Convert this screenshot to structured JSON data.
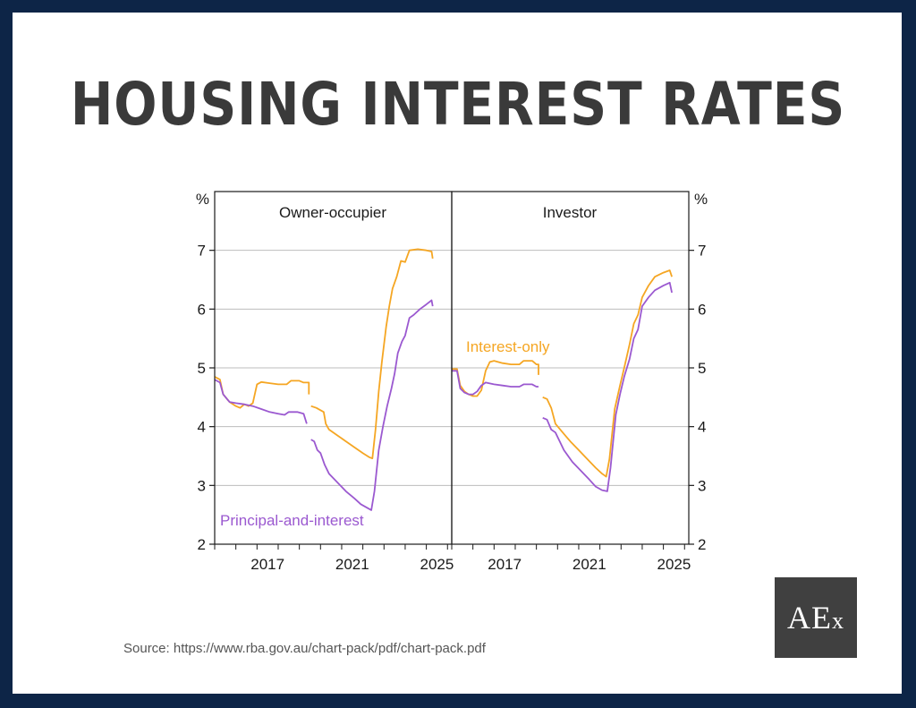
{
  "title": "HOUSING INTEREST RATES",
  "source": "Source: https://www.rba.gov.au/chart-pack/pdf/chart-pack.pdf",
  "logo": {
    "main": "AE",
    "sub": "x"
  },
  "colors": {
    "interest_only": "#f5a623",
    "principal_and_interest": "#9b59d0",
    "frame": "#1a1a1a",
    "gridline": "#bdbdbd"
  },
  "chart_data": {
    "type": "line",
    "y_unit_left": "%",
    "y_unit_right": "%",
    "ylim": [
      2,
      8
    ],
    "yticks": [
      2,
      3,
      4,
      5,
      6,
      7
    ],
    "xlim": [
      2015.0,
      2026.2
    ],
    "xticks": [
      2017,
      2021,
      2025
    ],
    "grid": true,
    "panels": [
      {
        "title": "Owner-occupier",
        "annotations": [
          {
            "text": "Principal-and-interest",
            "series": "Principal-and-interest",
            "placement": "bottom-left"
          }
        ],
        "series": [
          {
            "name": "Interest-only",
            "segments": [
              [
                [
                  2015.0,
                  4.85
                ],
                [
                  2015.25,
                  4.8
                ],
                [
                  2015.4,
                  4.55
                ],
                [
                  2015.7,
                  4.42
                ],
                [
                  2016.0,
                  4.35
                ],
                [
                  2016.2,
                  4.32
                ],
                [
                  2016.4,
                  4.38
                ],
                [
                  2016.6,
                  4.35
                ],
                [
                  2016.8,
                  4.4
                ],
                [
                  2017.0,
                  4.72
                ],
                [
                  2017.2,
                  4.76
                ],
                [
                  2017.6,
                  4.74
                ],
                [
                  2018.0,
                  4.72
                ],
                [
                  2018.4,
                  4.72
                ],
                [
                  2018.6,
                  4.78
                ],
                [
                  2019.0,
                  4.78
                ],
                [
                  2019.2,
                  4.75
                ],
                [
                  2019.45,
                  4.75
                ],
                [
                  2019.45,
                  4.55
                ]
              ],
              [
                [
                  2019.55,
                  4.35
                ],
                [
                  2019.8,
                  4.32
                ],
                [
                  2020.0,
                  4.28
                ],
                [
                  2020.15,
                  4.25
                ],
                [
                  2020.25,
                  4.05
                ],
                [
                  2020.4,
                  3.95
                ],
                [
                  2020.8,
                  3.85
                ],
                [
                  2021.2,
                  3.75
                ],
                [
                  2021.6,
                  3.65
                ],
                [
                  2022.0,
                  3.55
                ],
                [
                  2022.3,
                  3.48
                ],
                [
                  2022.45,
                  3.46
                ],
                [
                  2022.6,
                  3.95
                ],
                [
                  2022.75,
                  4.6
                ],
                [
                  2022.9,
                  5.1
                ],
                [
                  2023.1,
                  5.7
                ],
                [
                  2023.25,
                  6.05
                ],
                [
                  2023.4,
                  6.35
                ],
                [
                  2023.6,
                  6.55
                ],
                [
                  2023.8,
                  6.82
                ],
                [
                  2024.0,
                  6.8
                ],
                [
                  2024.2,
                  7.0
                ],
                [
                  2024.6,
                  7.02
                ],
                [
                  2025.0,
                  7.0
                ],
                [
                  2025.25,
                  6.98
                ],
                [
                  2025.3,
                  6.86
                ]
              ]
            ]
          },
          {
            "name": "Principal-and-interest",
            "segments": [
              [
                [
                  2015.0,
                  4.8
                ],
                [
                  2015.25,
                  4.75
                ],
                [
                  2015.4,
                  4.55
                ],
                [
                  2015.7,
                  4.42
                ],
                [
                  2016.0,
                  4.4
                ],
                [
                  2016.4,
                  4.38
                ],
                [
                  2016.8,
                  4.35
                ],
                [
                  2017.2,
                  4.3
                ],
                [
                  2017.6,
                  4.25
                ],
                [
                  2018.0,
                  4.22
                ],
                [
                  2018.3,
                  4.2
                ],
                [
                  2018.5,
                  4.25
                ],
                [
                  2018.9,
                  4.25
                ],
                [
                  2019.2,
                  4.22
                ],
                [
                  2019.35,
                  4.05
                ]
              ],
              [
                [
                  2019.55,
                  3.78
                ],
                [
                  2019.7,
                  3.75
                ],
                [
                  2019.85,
                  3.6
                ],
                [
                  2020.0,
                  3.55
                ],
                [
                  2020.2,
                  3.35
                ],
                [
                  2020.4,
                  3.2
                ],
                [
                  2020.8,
                  3.05
                ],
                [
                  2021.2,
                  2.9
                ],
                [
                  2021.6,
                  2.78
                ],
                [
                  2021.9,
                  2.68
                ],
                [
                  2022.2,
                  2.62
                ],
                [
                  2022.4,
                  2.58
                ],
                [
                  2022.55,
                  2.9
                ],
                [
                  2022.75,
                  3.6
                ],
                [
                  2022.95,
                  4.0
                ],
                [
                  2023.15,
                  4.35
                ],
                [
                  2023.35,
                  4.65
                ],
                [
                  2023.5,
                  4.9
                ],
                [
                  2023.65,
                  5.25
                ],
                [
                  2023.85,
                  5.45
                ],
                [
                  2024.0,
                  5.55
                ],
                [
                  2024.2,
                  5.85
                ],
                [
                  2024.4,
                  5.9
                ],
                [
                  2024.7,
                  6.0
                ],
                [
                  2025.0,
                  6.08
                ],
                [
                  2025.25,
                  6.15
                ],
                [
                  2025.3,
                  6.05
                ]
              ]
            ]
          }
        ]
      },
      {
        "title": "Investor",
        "annotations": [
          {
            "text": "Interest-only",
            "series": "Interest-only",
            "placement": "middle-left"
          }
        ],
        "series": [
          {
            "name": "Interest-only",
            "segments": [
              [
                [
                  2015.0,
                  4.98
                ],
                [
                  2015.25,
                  4.98
                ],
                [
                  2015.4,
                  4.7
                ],
                [
                  2015.6,
                  4.6
                ],
                [
                  2015.8,
                  4.55
                ],
                [
                  2016.0,
                  4.52
                ],
                [
                  2016.2,
                  4.52
                ],
                [
                  2016.4,
                  4.62
                ],
                [
                  2016.6,
                  4.95
                ],
                [
                  2016.8,
                  5.1
                ],
                [
                  2017.0,
                  5.12
                ],
                [
                  2017.4,
                  5.08
                ],
                [
                  2017.8,
                  5.06
                ],
                [
                  2018.2,
                  5.06
                ],
                [
                  2018.4,
                  5.12
                ],
                [
                  2018.8,
                  5.12
                ],
                [
                  2019.0,
                  5.06
                ],
                [
                  2019.1,
                  5.06
                ],
                [
                  2019.1,
                  4.88
                ]
              ],
              [
                [
                  2019.3,
                  4.5
                ],
                [
                  2019.5,
                  4.47
                ],
                [
                  2019.7,
                  4.32
                ],
                [
                  2019.9,
                  4.05
                ],
                [
                  2020.2,
                  3.92
                ],
                [
                  2020.6,
                  3.75
                ],
                [
                  2021.0,
                  3.6
                ],
                [
                  2021.4,
                  3.45
                ],
                [
                  2021.8,
                  3.3
                ],
                [
                  2022.1,
                  3.2
                ],
                [
                  2022.3,
                  3.15
                ],
                [
                  2022.45,
                  3.45
                ],
                [
                  2022.7,
                  4.3
                ],
                [
                  2022.95,
                  4.7
                ],
                [
                  2023.15,
                  5.0
                ],
                [
                  2023.4,
                  5.4
                ],
                [
                  2023.6,
                  5.75
                ],
                [
                  2023.8,
                  5.9
                ],
                [
                  2024.0,
                  6.2
                ],
                [
                  2024.3,
                  6.4
                ],
                [
                  2024.6,
                  6.55
                ],
                [
                  2025.0,
                  6.62
                ],
                [
                  2025.3,
                  6.66
                ],
                [
                  2025.4,
                  6.55
                ]
              ]
            ]
          },
          {
            "name": "Principal-and-interest",
            "segments": [
              [
                [
                  2015.0,
                  4.95
                ],
                [
                  2015.25,
                  4.95
                ],
                [
                  2015.4,
                  4.65
                ],
                [
                  2015.6,
                  4.58
                ],
                [
                  2015.8,
                  4.55
                ],
                [
                  2016.0,
                  4.55
                ],
                [
                  2016.2,
                  4.6
                ],
                [
                  2016.4,
                  4.7
                ],
                [
                  2016.6,
                  4.75
                ],
                [
                  2017.0,
                  4.72
                ],
                [
                  2017.4,
                  4.7
                ],
                [
                  2017.8,
                  4.68
                ],
                [
                  2018.2,
                  4.68
                ],
                [
                  2018.4,
                  4.72
                ],
                [
                  2018.8,
                  4.72
                ],
                [
                  2019.0,
                  4.68
                ],
                [
                  2019.1,
                  4.68
                ]
              ],
              [
                [
                  2019.3,
                  4.15
                ],
                [
                  2019.5,
                  4.12
                ],
                [
                  2019.7,
                  3.95
                ],
                [
                  2019.9,
                  3.9
                ],
                [
                  2020.1,
                  3.75
                ],
                [
                  2020.3,
                  3.6
                ],
                [
                  2020.7,
                  3.4
                ],
                [
                  2021.1,
                  3.25
                ],
                [
                  2021.5,
                  3.1
                ],
                [
                  2021.8,
                  2.98
                ],
                [
                  2022.1,
                  2.92
                ],
                [
                  2022.35,
                  2.9
                ],
                [
                  2022.5,
                  3.3
                ],
                [
                  2022.75,
                  4.2
                ],
                [
                  2022.95,
                  4.55
                ],
                [
                  2023.15,
                  4.85
                ],
                [
                  2023.4,
                  5.15
                ],
                [
                  2023.6,
                  5.5
                ],
                [
                  2023.8,
                  5.65
                ],
                [
                  2024.0,
                  6.05
                ],
                [
                  2024.3,
                  6.2
                ],
                [
                  2024.6,
                  6.32
                ],
                [
                  2025.0,
                  6.4
                ],
                [
                  2025.3,
                  6.45
                ],
                [
                  2025.4,
                  6.28
                ]
              ]
            ]
          }
        ]
      }
    ]
  }
}
